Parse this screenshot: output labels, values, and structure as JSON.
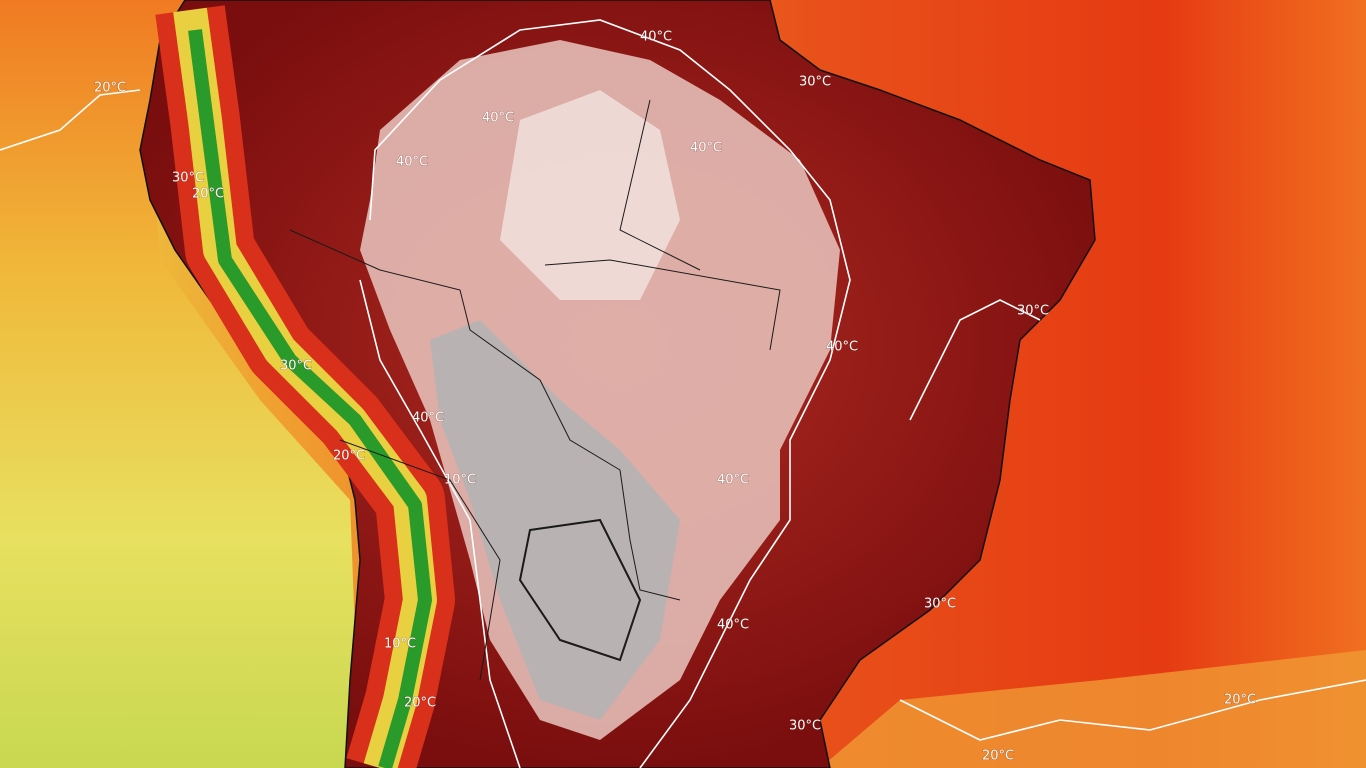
{
  "map": {
    "contour_labels": [
      "40°C",
      "30°C",
      "20°C",
      "40°C",
      "40°C",
      "40°C",
      "30°C",
      "20°C",
      "30°C",
      "40°C",
      "30°C",
      "40°C",
      "20°C",
      "10°C",
      "40°C",
      "30°C",
      "40°C",
      "10°C",
      "20°C",
      "20°C",
      "30°C",
      "20°C"
    ]
  }
}
